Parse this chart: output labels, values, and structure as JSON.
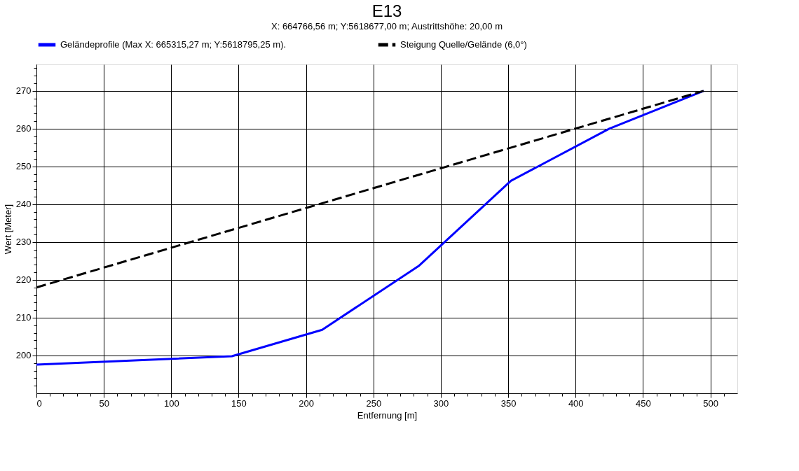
{
  "chart_data": {
    "type": "line",
    "title": "E13",
    "subtitle": "X: 664766,56 m; Y:5618677,00 m; Austrittshöhe: 20,00 m",
    "xlabel": "Entfernung [m]",
    "ylabel": "Wert [Meter]",
    "xlim": [
      0,
      520
    ],
    "ylim": [
      190,
      277
    ],
    "xticks": [
      0,
      {
        "value": 10,
        "label": null
      },
      {
        "value": 20,
        "label": null
      },
      {
        "value": 30,
        "label": null
      },
      {
        "value": 40,
        "label": null
      },
      50,
      {
        "value": 60,
        "label": null
      },
      {
        "value": 70,
        "label": null
      },
      {
        "value": 80,
        "label": null
      },
      {
        "value": 90,
        "label": null
      },
      100,
      {
        "value": 110,
        "label": null
      },
      {
        "value": 120,
        "label": null
      },
      {
        "value": 130,
        "label": null
      },
      {
        "value": 140,
        "label": null
      },
      150,
      {
        "value": 160,
        "label": null
      },
      {
        "value": 170,
        "label": null
      },
      {
        "value": 180,
        "label": null
      },
      {
        "value": 190,
        "label": null
      },
      200,
      {
        "value": 210,
        "label": null
      },
      {
        "value": 220,
        "label": null
      },
      {
        "value": 230,
        "label": null
      },
      {
        "value": 240,
        "label": null
      },
      250,
      {
        "value": 260,
        "label": null
      },
      {
        "value": 270,
        "label": null
      },
      {
        "value": 280,
        "label": null
      },
      {
        "value": 290,
        "label": null
      },
      300,
      {
        "value": 310,
        "label": null
      },
      {
        "value": 320,
        "label": null
      },
      {
        "value": 330,
        "label": null
      },
      {
        "value": 340,
        "label": null
      },
      350,
      {
        "value": 360,
        "label": null
      },
      {
        "value": 370,
        "label": null
      },
      {
        "value": 380,
        "label": null
      },
      {
        "value": 390,
        "label": null
      },
      400,
      {
        "value": 410,
        "label": null
      },
      {
        "value": 420,
        "label": null
      },
      {
        "value": 430,
        "label": null
      },
      {
        "value": 440,
        "label": null
      },
      450,
      {
        "value": 460,
        "label": null
      },
      {
        "value": 470,
        "label": null
      },
      {
        "value": 480,
        "label": null
      },
      {
        "value": 490,
        "label": null
      },
      500,
      {
        "value": 510,
        "label": null
      }
    ],
    "yticks": [
      {
        "value": 192,
        "label": null
      },
      {
        "value": 194,
        "label": null
      },
      {
        "value": 196,
        "label": null
      },
      {
        "value": 198,
        "label": null
      },
      200,
      {
        "value": 202,
        "label": null
      },
      {
        "value": 204,
        "label": null
      },
      {
        "value": 206,
        "label": null
      },
      {
        "value": 208,
        "label": null
      },
      210,
      {
        "value": 212,
        "label": null
      },
      {
        "value": 214,
        "label": null
      },
      {
        "value": 216,
        "label": null
      },
      {
        "value": 218,
        "label": null
      },
      220,
      {
        "value": 222,
        "label": null
      },
      {
        "value": 224,
        "label": null
      },
      {
        "value": 226,
        "label": null
      },
      {
        "value": 228,
        "label": null
      },
      230,
      {
        "value": 232,
        "label": null
      },
      {
        "value": 234,
        "label": null
      },
      {
        "value": 236,
        "label": null
      },
      {
        "value": 238,
        "label": null
      },
      240,
      {
        "value": 242,
        "label": null
      },
      {
        "value": 244,
        "label": null
      },
      {
        "value": 246,
        "label": null
      },
      {
        "value": 248,
        "label": null
      },
      250,
      {
        "value": 252,
        "label": null
      },
      {
        "value": 254,
        "label": null
      },
      {
        "value": 256,
        "label": null
      },
      {
        "value": 258,
        "label": null
      },
      260,
      {
        "value": 262,
        "label": null
      },
      {
        "value": 264,
        "label": null
      },
      {
        "value": 266,
        "label": null
      },
      {
        "value": 268,
        "label": null
      },
      270,
      {
        "value": 272,
        "label": null
      },
      {
        "value": 274,
        "label": null
      },
      {
        "value": 276,
        "label": null
      }
    ],
    "grid": true,
    "legend": "top",
    "marker": "none",
    "series": [
      {
        "name": "Geländeprofile (Max X: 665315,27 m; Y:5618795,25 m).",
        "color": "#0000ff",
        "line_style": "solid",
        "x": [
          0,
          145,
          212,
          284,
          352,
          425,
          495
        ],
        "values": [
          197.6,
          199.8,
          206.8,
          223.8,
          246.2,
          260,
          270
        ]
      },
      {
        "name": "Steigung Quelle/Gelände (6,0°)",
        "color": "#000000",
        "line_style": "dashed",
        "x": [
          0,
          495
        ],
        "values": [
          218,
          270
        ]
      }
    ]
  }
}
